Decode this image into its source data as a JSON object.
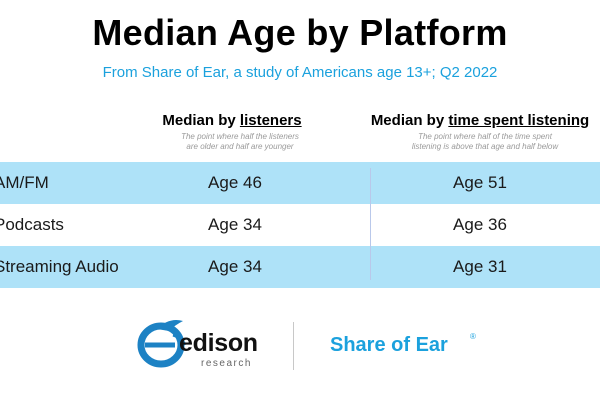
{
  "header": {
    "title": "Median Age by Platform",
    "subtitle": "From Share of Ear, a study of Americans age 13+; Q2 2022"
  },
  "columns": {
    "listeners": {
      "label_prefix": "Median by ",
      "label_emphasis": "listeners",
      "note_line1": "The point where half the listeners",
      "note_line2": "are older and half are younger"
    },
    "time_spent": {
      "label_prefix": "Median by ",
      "label_emphasis": "time spent listening",
      "note_line1": "The point where half of the time spent",
      "note_line2": "listening is above that age and half below"
    }
  },
  "rows": [
    {
      "platform": "AM/FM",
      "listeners_label": "Age 46",
      "time_label": "Age 51"
    },
    {
      "platform": "Podcasts",
      "listeners_label": "Age 34",
      "time_label": "Age 36"
    },
    {
      "platform": "Streaming Audio",
      "listeners_label": "Age 34",
      "time_label": "Age 31"
    }
  ],
  "logos": {
    "edison_word": "edison",
    "edison_sub": "research",
    "share_of_ear": "Share of Ear",
    "registered_mark": "®"
  },
  "colors": {
    "accent_blue": "#1ba1dd",
    "row_shade": "#aee2f8",
    "edison_mark_blue": "#1d82c4"
  },
  "chart_data": {
    "type": "table",
    "title": "Median Age by Platform",
    "subtitle": "From Share of Ear, a study of Americans age 13+; Q2 2022",
    "columns": [
      "Median by listeners",
      "Median by time spent listening"
    ],
    "categories": [
      "AM/FM",
      "Podcasts",
      "Streaming Audio"
    ],
    "series": [
      {
        "name": "Median by listeners",
        "values": [
          46,
          34,
          34
        ]
      },
      {
        "name": "Median by time spent listening",
        "values": [
          51,
          36,
          31
        ]
      }
    ]
  }
}
